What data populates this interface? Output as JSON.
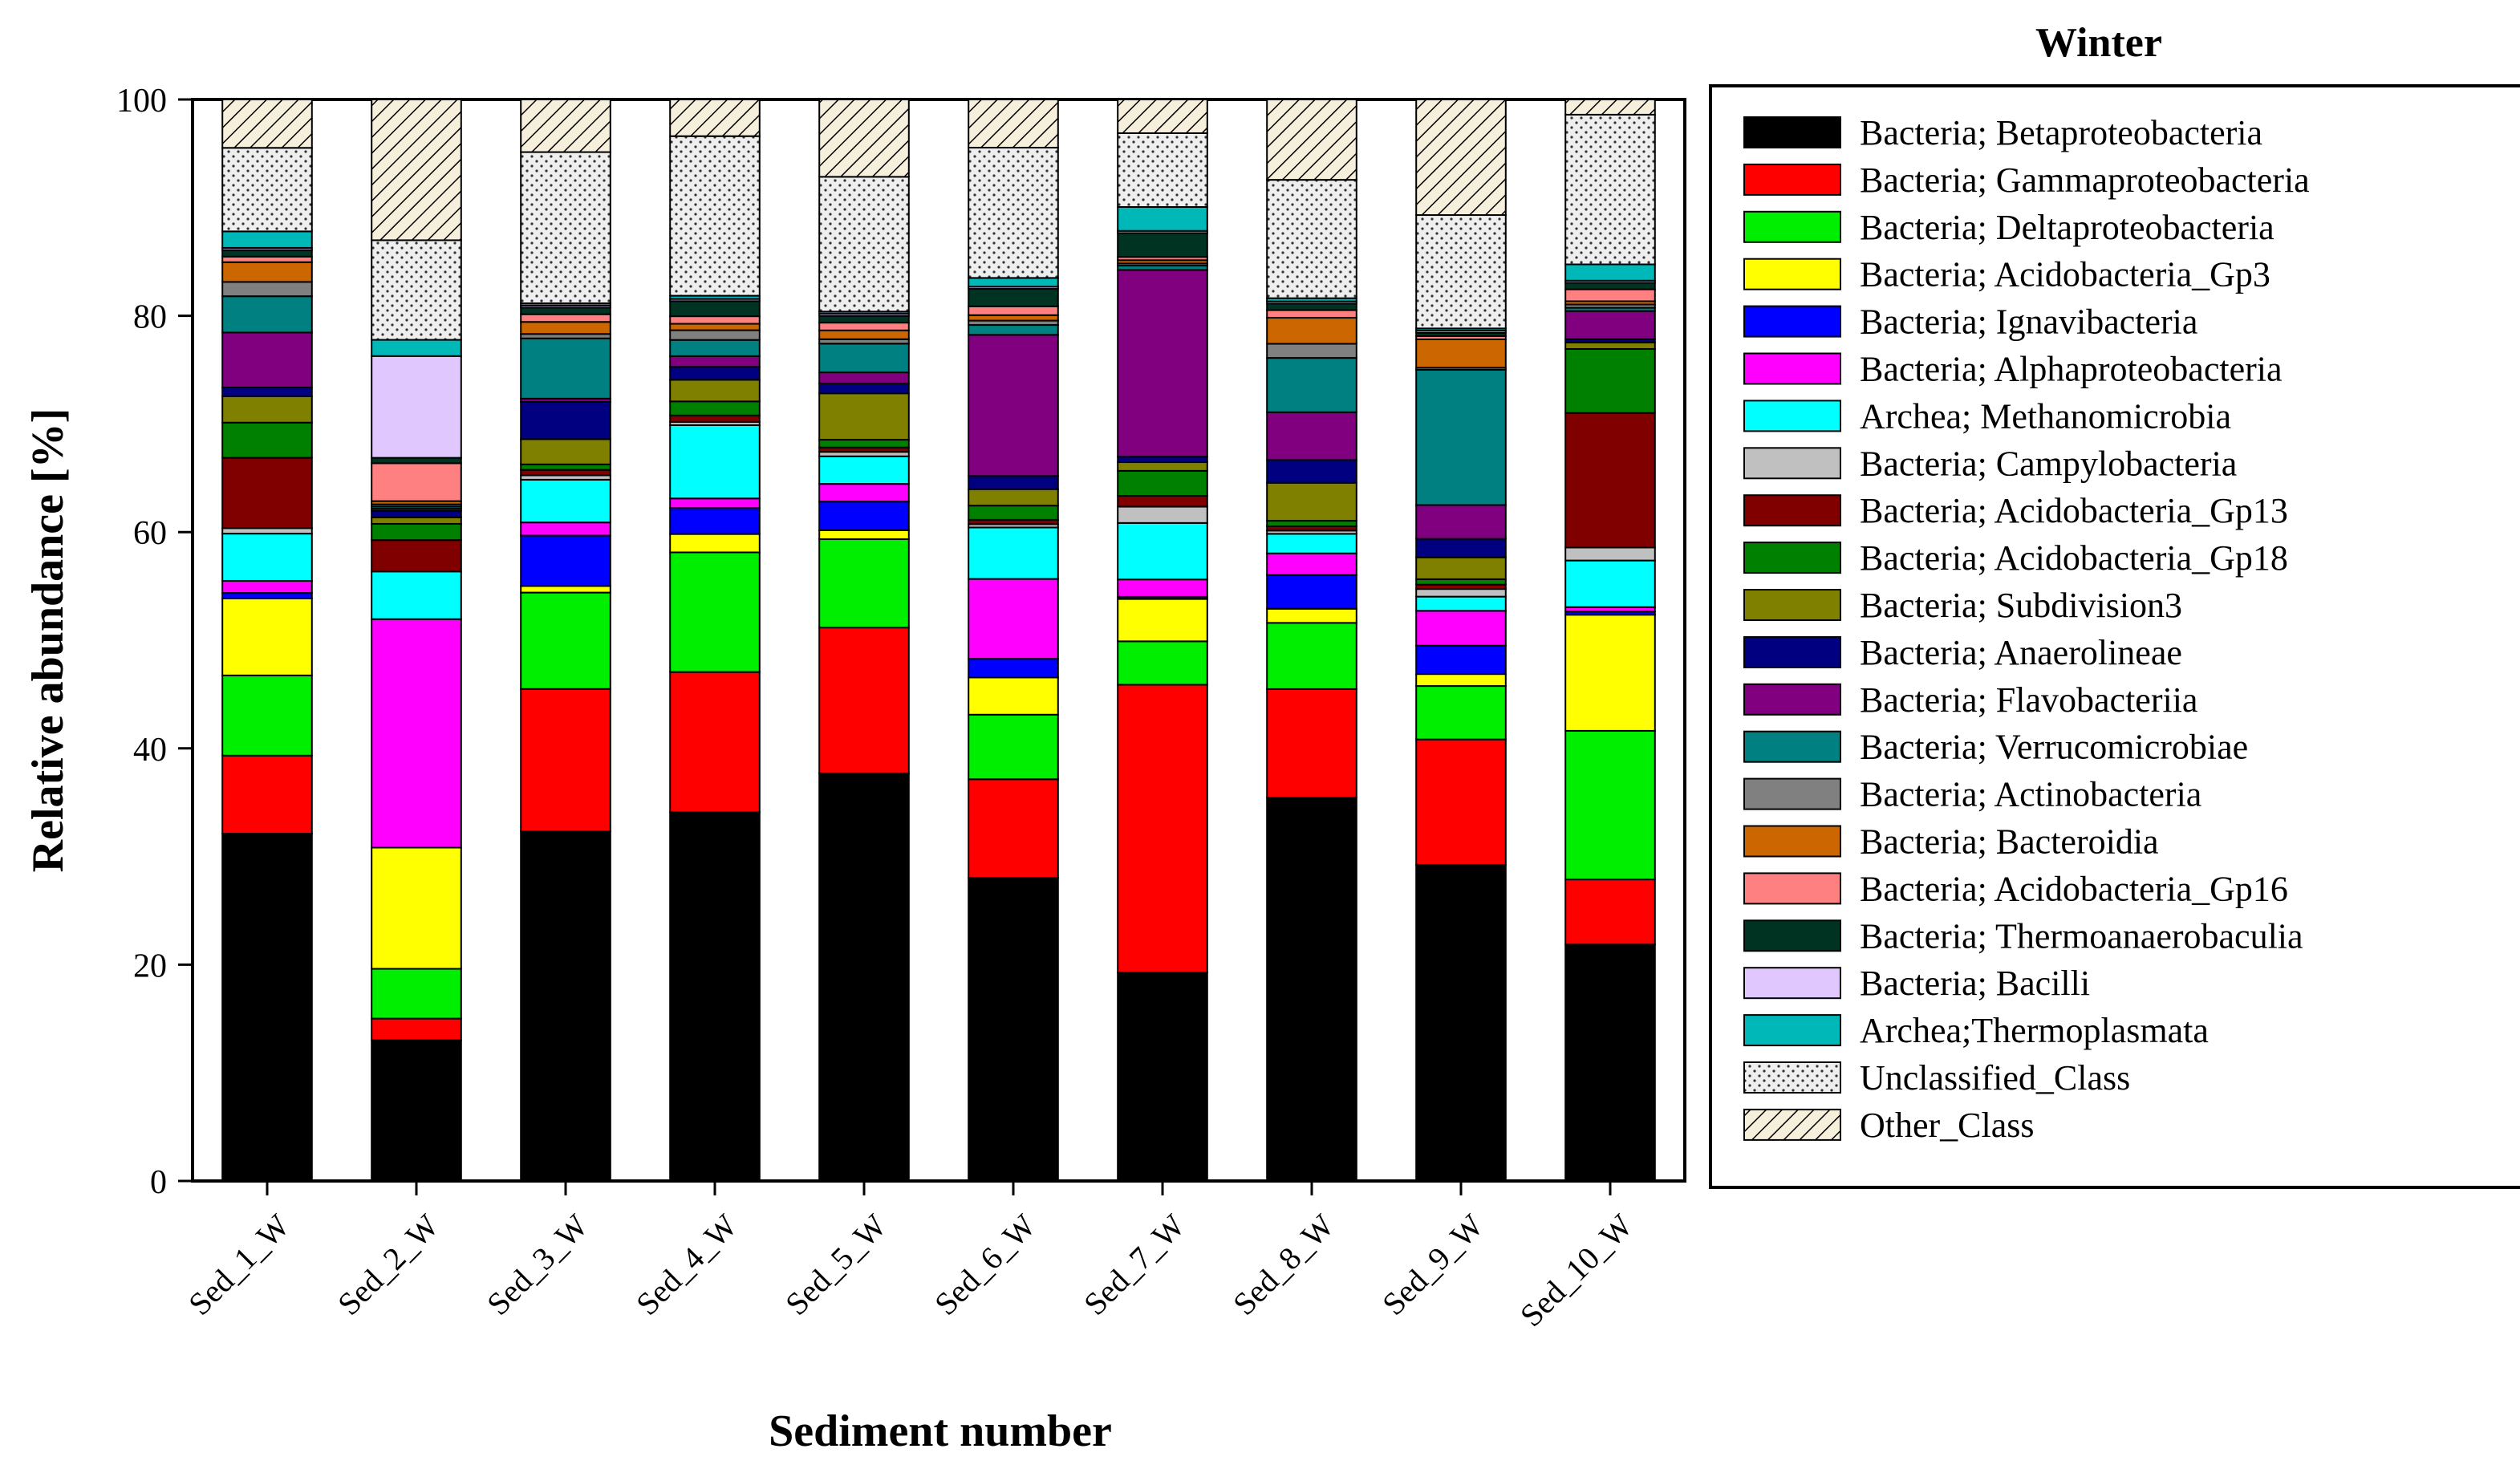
{
  "chart_data": {
    "type": "bar",
    "stacked": true,
    "title": "Winter",
    "xlabel": "Sediment number",
    "ylabel": "Relative abundance [%]",
    "ylim": [
      0,
      100
    ],
    "yticks": [
      0,
      20,
      40,
      60,
      80,
      100
    ],
    "categories": [
      "Sed_1_W",
      "Sed_2_W",
      "Sed_3_W",
      "Sed_4_W",
      "Sed_5_W",
      "Sed_6_W",
      "Sed_7_W",
      "Sed_8_W",
      "Sed_9_W",
      "Sed_10_W"
    ],
    "legend_position": "right",
    "series": [
      {
        "name": "Bacteria; Betaproteobacteria",
        "color": "#000000",
        "values": [
          31.6,
          13.0,
          31.9,
          34.2,
          36.9,
          27.7,
          19.2,
          35.3,
          29.0,
          21.8
        ]
      },
      {
        "name": "Bacteria; Gammaproteobacteria",
        "color": "#ff0000",
        "values": [
          7.1,
          2.0,
          13.0,
          13.0,
          13.2,
          9.0,
          26.5,
          10.0,
          11.5,
          6.0
        ]
      },
      {
        "name": "Bacteria; Deltaproteobacteria",
        "color": "#00ee00",
        "values": [
          7.3,
          4.6,
          8.8,
          11.1,
          8.0,
          5.9,
          4.0,
          6.1,
          4.9,
          13.7
        ]
      },
      {
        "name": "Bacteria; Acidobacteria_Gp3",
        "color": "#ffff00",
        "values": [
          7.0,
          11.2,
          0.6,
          1.7,
          0.8,
          3.4,
          3.9,
          1.3,
          1.1,
          10.7
        ]
      },
      {
        "name": "Bacteria; Ignavibacteria",
        "color": "#0000ff",
        "values": [
          0.5,
          0,
          4.6,
          2.4,
          2.6,
          1.7,
          0.2,
          3.1,
          2.6,
          0.3
        ]
      },
      {
        "name": "Bacteria; Alphaproteobacteria",
        "color": "#ff00ff",
        "values": [
          1.1,
          21.1,
          1.2,
          0.9,
          1.6,
          7.3,
          1.6,
          2.0,
          3.2,
          0.4
        ]
      },
      {
        "name": "Archea; Methanomicrobia",
        "color": "#00ffff",
        "values": [
          4.3,
          4.4,
          3.9,
          6.8,
          2.5,
          4.7,
          5.2,
          1.8,
          1.3,
          4.3
        ]
      },
      {
        "name": "Bacteria; Campylobacteria",
        "color": "#c0c0c0",
        "values": [
          0.5,
          0,
          0.4,
          0.3,
          0.4,
          0.3,
          1.5,
          0.3,
          0.7,
          1.2
        ]
      },
      {
        "name": "Bacteria; Acidobacteria_Gp13",
        "color": "#800000",
        "values": [
          6.4,
          2.9,
          0.5,
          0.6,
          0.4,
          0.4,
          1.0,
          0.4,
          0.4,
          12.4
        ]
      },
      {
        "name": "Bacteria; Acidobacteria_Gp18",
        "color": "#008000",
        "values": [
          3.2,
          1.5,
          0.5,
          1.3,
          0.7,
          1.3,
          2.3,
          0.5,
          0.5,
          5.9
        ]
      },
      {
        "name": "Bacteria; Subdivision3",
        "color": "#808000",
        "values": [
          2.4,
          0.6,
          2.3,
          2.0,
          4.2,
          1.5,
          0.8,
          3.5,
          2.0,
          0.6
        ]
      },
      {
        "name": "Bacteria; Anaerolineae",
        "color": "#000080",
        "values": [
          0.8,
          0.6,
          3.4,
          1.2,
          0.9,
          1.2,
          0.5,
          2.1,
          1.7,
          0.3
        ]
      },
      {
        "name": "Bacteria; Flavobacteriia",
        "color": "#800080",
        "values": [
          5.0,
          0.2,
          0.3,
          1.0,
          1.0,
          12.9,
          17.2,
          4.4,
          3.1,
          2.6
        ]
      },
      {
        "name": "Bacteria; Verrucomicrobiae",
        "color": "#008080",
        "values": [
          3.3,
          0.2,
          5.5,
          1.5,
          2.6,
          0.9,
          0.4,
          5.0,
          12.4,
          0.3
        ]
      },
      {
        "name": "Bacteria; Actinobacteria",
        "color": "#808080",
        "values": [
          1.3,
          0.2,
          0.4,
          0.9,
          0.4,
          0.4,
          0.2,
          1.3,
          0.2,
          0.3
        ]
      },
      {
        "name": "Bacteria; Bacteroidia",
        "color": "#cc6600",
        "values": [
          1.8,
          0.3,
          1.1,
          0.6,
          0.8,
          0.5,
          0.3,
          2.4,
          2.6,
          0.3
        ]
      },
      {
        "name": "Bacteria; Acidobacteria_Gp16",
        "color": "#ff8080",
        "values": [
          0.5,
          3.5,
          0.7,
          0.7,
          0.7,
          0.8,
          0.3,
          0.7,
          0.3,
          1.1
        ]
      },
      {
        "name": "Bacteria; Thermoanaerobaculia",
        "color": "#003322",
        "values": [
          0.6,
          0.5,
          0.6,
          1.4,
          0.6,
          1.6,
          2.2,
          0.6,
          0.3,
          0.6
        ]
      },
      {
        "name": "Bacteria; Bacilli",
        "color": "#e0c8ff",
        "values": [
          0.2,
          9.4,
          0.2,
          0.2,
          0.2,
          0.2,
          0.2,
          0.2,
          0.2,
          0.2
        ]
      },
      {
        "name": "Archea;Thermoplasmata",
        "color": "#00b8b8",
        "values": [
          1.5,
          1.5,
          0.2,
          0.3,
          0.2,
          0.8,
          2.2,
          0.3,
          0.2,
          1.5
        ]
      },
      {
        "name": "Unclassified_Class",
        "color": "#e8e8e8",
        "pattern": "dots",
        "values": [
          7.6,
          9.2,
          13.8,
          14.8,
          12.2,
          11.9,
          6.8,
          10.9,
          10.4,
          13.8
        ]
      },
      {
        "name": "Other_Class",
        "color": "#ffffff",
        "pattern": "hatch",
        "values": [
          4.4,
          13.0,
          4.8,
          3.4,
          7.0,
          4.4,
          3.1,
          7.4,
          10.6,
          1.4
        ]
      }
    ]
  }
}
